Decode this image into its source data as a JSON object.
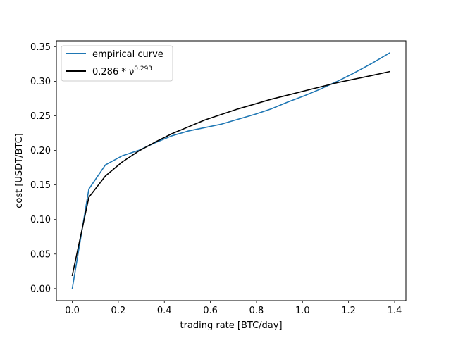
{
  "chart_data": {
    "type": "line",
    "title": "",
    "xlabel": "trading rate [BTC/day]",
    "ylabel": "cost [USDT/BTC]",
    "xlim": [
      -0.069,
      1.449
    ],
    "ylim": [
      -0.0175,
      0.3585
    ],
    "xticks": [
      0.0,
      0.2,
      0.4,
      0.6,
      0.8,
      1.0,
      1.2,
      1.4
    ],
    "xtick_labels": [
      "0.0",
      "0.2",
      "0.4",
      "0.6",
      "0.8",
      "1.0",
      "1.2",
      "1.4"
    ],
    "yticks": [
      0.0,
      0.05,
      0.1,
      0.15,
      0.2,
      0.25,
      0.3,
      0.35
    ],
    "ytick_labels": [
      "0.00",
      "0.05",
      "0.10",
      "0.15",
      "0.20",
      "0.25",
      "0.30",
      "0.35"
    ],
    "grid": false,
    "legend": {
      "placement": "top-left"
    },
    "series": [
      {
        "name": "empirical curve",
        "color": "#1f77b4",
        "x": [
          0.0,
          0.072,
          0.144,
          0.216,
          0.288,
          0.36,
          0.432,
          0.504,
          0.576,
          0.648,
          0.72,
          0.792,
          0.864,
          0.936,
          1.008,
          1.08,
          1.152,
          1.224,
          1.296,
          1.378
        ],
        "y": [
          0.0,
          0.144,
          0.179,
          0.192,
          0.2,
          0.211,
          0.221,
          0.228,
          0.233,
          0.238,
          0.245,
          0.252,
          0.26,
          0.27,
          0.279,
          0.289,
          0.3,
          0.312,
          0.325,
          0.341
        ]
      },
      {
        "name_prefix": "0.286 * ν",
        "name_exponent": "0.293",
        "color": "#000000",
        "x": [
          0.0,
          0.072,
          0.144,
          0.216,
          0.288,
          0.36,
          0.432,
          0.504,
          0.576,
          0.648,
          0.72,
          0.792,
          0.864,
          0.936,
          1.008,
          1.08,
          1.152,
          1.224,
          1.296,
          1.378
        ],
        "y": [
          0.019,
          0.132,
          0.163,
          0.183,
          0.199,
          0.212,
          0.224,
          0.234,
          0.244,
          0.252,
          0.26,
          0.267,
          0.274,
          0.28,
          0.286,
          0.292,
          0.298,
          0.303,
          0.308,
          0.314
        ]
      }
    ]
  }
}
